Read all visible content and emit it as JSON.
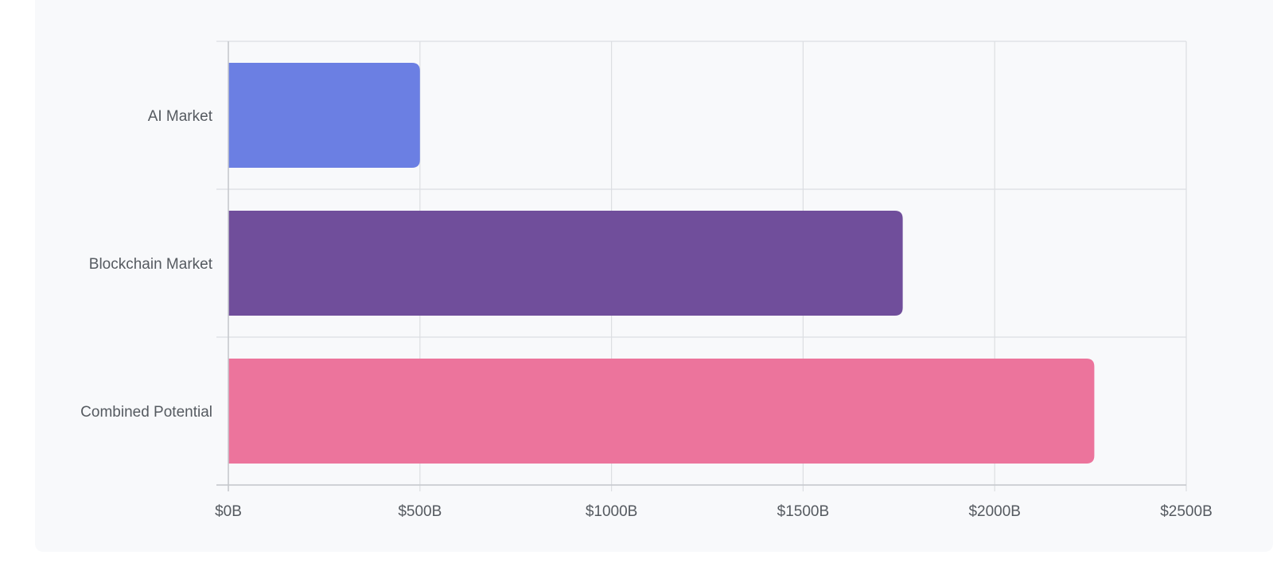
{
  "chart_data": {
    "type": "bar",
    "orientation": "horizontal",
    "categories": [
      "AI Market",
      "Blockchain Market",
      "Combined Potential"
    ],
    "values": [
      500,
      1760,
      2260
    ],
    "colors": [
      "#6b7fe3",
      "#704e9b",
      "#ec749c"
    ],
    "xlim": [
      0,
      2500
    ],
    "x_ticks": [
      0,
      500,
      1000,
      1500,
      2000,
      2500
    ],
    "x_tick_labels": [
      "$0B",
      "$500B",
      "$1000B",
      "$1500B",
      "$2000B",
      "$2500B"
    ],
    "grid": true,
    "legend": "none"
  }
}
